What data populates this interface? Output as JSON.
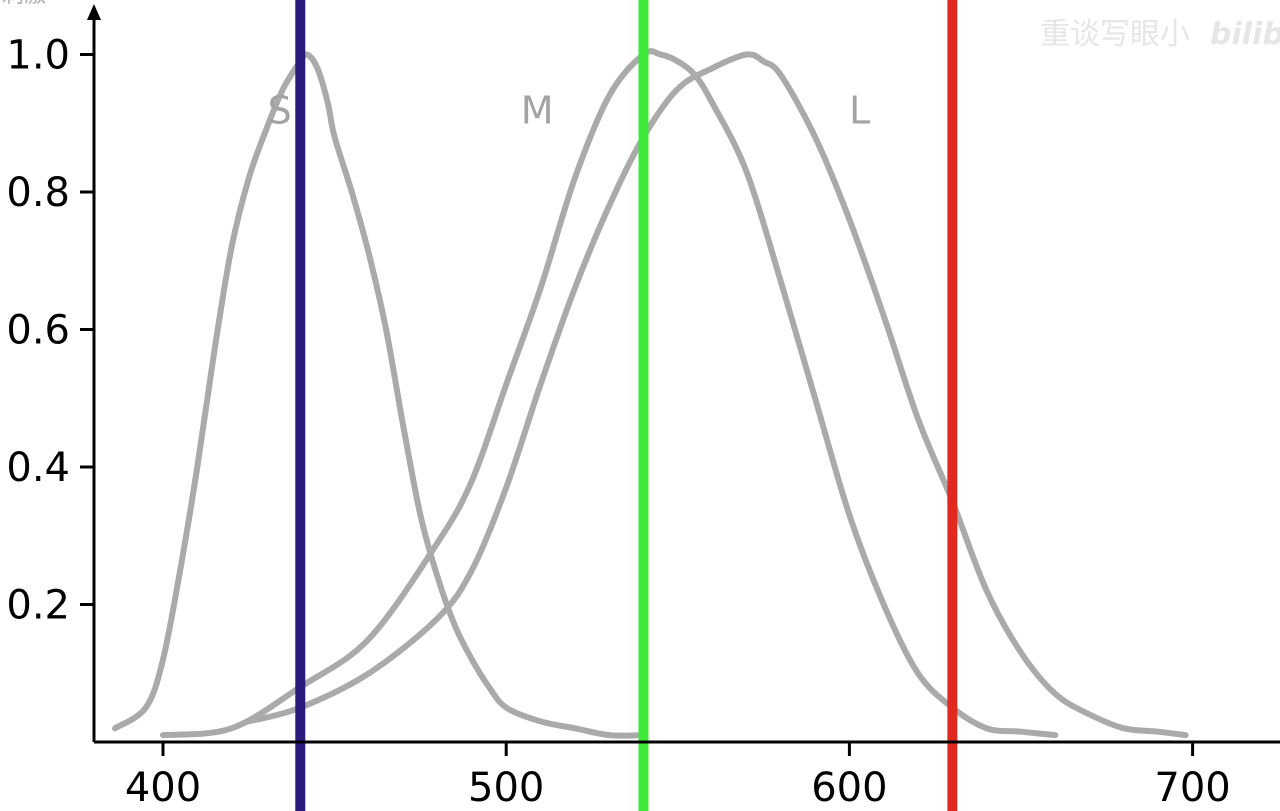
{
  "chart_data": {
    "type": "line",
    "title": "",
    "xlabel": "",
    "ylabel": "",
    "xlim": [
      380,
      725
    ],
    "ylim": [
      0,
      1.05
    ],
    "x_ticks": [
      400,
      500,
      600,
      700
    ],
    "x_tick_labels": [
      "400",
      "500",
      "600",
      "700"
    ],
    "y_ticks": [
      0.2,
      0.4,
      0.6,
      0.8,
      1.0
    ],
    "y_tick_labels": [
      "0.2",
      "0.4",
      "0.6",
      "0.8",
      "1.0"
    ],
    "grid": false,
    "legend": "none",
    "series_color": "#aaaaaa",
    "series": [
      {
        "name": "S",
        "x": [
          386,
          395,
          400,
          405,
          410,
          415,
          420,
          425,
          430,
          435,
          440,
          442,
          445,
          448,
          450,
          455,
          460,
          465,
          470,
          475,
          480,
          485,
          490,
          495,
          500,
          510,
          520,
          530,
          540
        ],
        "y": [
          0.02,
          0.05,
          0.12,
          0.25,
          0.4,
          0.57,
          0.72,
          0.82,
          0.89,
          0.95,
          0.99,
          1.0,
          0.98,
          0.93,
          0.88,
          0.8,
          0.71,
          0.6,
          0.46,
          0.33,
          0.24,
          0.17,
          0.12,
          0.08,
          0.05,
          0.03,
          0.02,
          0.01,
          0.01
        ]
      },
      {
        "name": "M",
        "x": [
          400,
          420,
          440,
          460,
          480,
          490,
          500,
          510,
          520,
          530,
          540,
          545,
          550,
          555,
          560,
          570,
          580,
          590,
          600,
          610,
          620,
          630,
          640,
          650,
          660
        ],
        "y": [
          0.01,
          0.02,
          0.08,
          0.15,
          0.29,
          0.38,
          0.52,
          0.66,
          0.82,
          0.94,
          1.0,
          1.0,
          0.99,
          0.97,
          0.93,
          0.83,
          0.67,
          0.5,
          0.33,
          0.2,
          0.1,
          0.05,
          0.02,
          0.015,
          0.01
        ]
      },
      {
        "name": "L",
        "x": [
          425,
          440,
          460,
          480,
          490,
          500,
          510,
          520,
          530,
          540,
          550,
          560,
          570,
          575,
          580,
          590,
          600,
          610,
          620,
          630,
          640,
          650,
          660,
          670,
          680,
          690,
          698
        ],
        "y": [
          0.03,
          0.05,
          0.1,
          0.18,
          0.25,
          0.37,
          0.52,
          0.66,
          0.78,
          0.88,
          0.95,
          0.98,
          1.0,
          0.99,
          0.97,
          0.88,
          0.76,
          0.62,
          0.47,
          0.35,
          0.22,
          0.13,
          0.07,
          0.04,
          0.02,
          0.015,
          0.01
        ]
      }
    ],
    "vertical_lines": [
      {
        "x": 440,
        "color": "#2b1b7c"
      },
      {
        "x": 540,
        "color": "#3dea3a"
      },
      {
        "x": 630,
        "color": "#e02a1f"
      }
    ],
    "series_label_positions": [
      {
        "name": "S",
        "x": 434,
        "y": 0.92
      },
      {
        "name": "M",
        "x": 509,
        "y": 0.92
      },
      {
        "name": "L",
        "x": 603,
        "y": 0.92
      }
    ]
  },
  "watermark_text": "重谈写眼小",
  "watermark_logo": "bilibili",
  "corner_text": "刺激"
}
